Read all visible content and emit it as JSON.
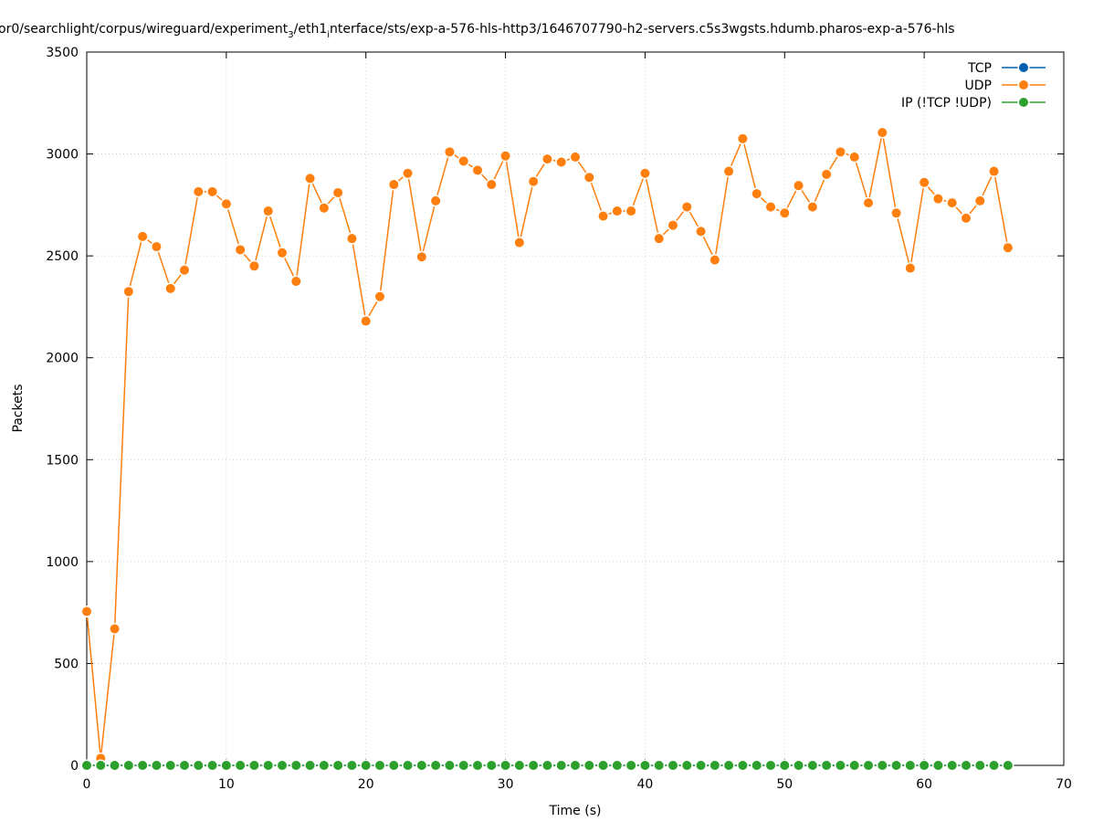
{
  "chart_data": {
    "type": "line",
    "title": "or0/searchlight/corpus/wireguard/experiment",
    "title_sub_1": "3",
    "title_mid": "/eth1",
    "title_sub_2": "i",
    "title_tail": "nterface/sts/exp-a-576-hls-http3/1646707790-h2-servers.c5s3wgsts.hdumb.pharos-exp-a-576-hls",
    "xlabel": "Time (s)",
    "ylabel": "Packets",
    "xlim": [
      0,
      70
    ],
    "ylim": [
      0,
      3500
    ],
    "xticks": [
      0,
      10,
      20,
      30,
      40,
      50,
      60,
      70
    ],
    "yticks": [
      0,
      500,
      1000,
      1500,
      2000,
      2500,
      3000,
      3500
    ],
    "grid": true,
    "legend_position": "top-right",
    "x": [
      0,
      1,
      2,
      3,
      4,
      5,
      6,
      7,
      8,
      9,
      10,
      11,
      12,
      13,
      14,
      15,
      16,
      17,
      18,
      19,
      20,
      21,
      22,
      23,
      24,
      25,
      26,
      27,
      28,
      29,
      30,
      31,
      32,
      33,
      34,
      35,
      36,
      37,
      38,
      39,
      40,
      41,
      42,
      43,
      44,
      45,
      46,
      47,
      48,
      49,
      50,
      51,
      52,
      53,
      54,
      55,
      56,
      57,
      58,
      59,
      60,
      61,
      62,
      63,
      64,
      65,
      66
    ],
    "series": [
      {
        "name": "TCP",
        "color": "#0060ad",
        "values": [
          0,
          0,
          0,
          0,
          0,
          0,
          0,
          0,
          0,
          0,
          0,
          0,
          0,
          0,
          0,
          0,
          0,
          0,
          0,
          0,
          0,
          0,
          0,
          0,
          0,
          0,
          0,
          0,
          0,
          0,
          0,
          0,
          0,
          0,
          0,
          0,
          0,
          0,
          0,
          0,
          0,
          0,
          0,
          0,
          0,
          0,
          0,
          0,
          0,
          0,
          0,
          0,
          0,
          0,
          0,
          0,
          0,
          0,
          0,
          0,
          0,
          0,
          0,
          0,
          0,
          0,
          0
        ]
      },
      {
        "name": "UDP",
        "color": "#ff7f0e",
        "values": [
          755,
          35,
          670,
          2325,
          2595,
          2545,
          2340,
          2430,
          2815,
          2815,
          2755,
          2530,
          2450,
          2720,
          2515,
          2375,
          2880,
          2735,
          2810,
          2585,
          2180,
          2300,
          2850,
          2905,
          2495,
          2770,
          3010,
          2965,
          2920,
          2850,
          2990,
          2565,
          2865,
          2975,
          2960,
          2985,
          2885,
          2695,
          2720,
          2720,
          2905,
          2585,
          2650,
          2740,
          2620,
          2480,
          2915,
          3075,
          2805,
          2740,
          2710,
          2845,
          2740,
          2900,
          3010,
          2985,
          2760,
          3105,
          2710,
          2440,
          2860,
          2780,
          2760,
          2685,
          2770,
          2915,
          2540
        ]
      },
      {
        "name": "IP (!TCP  !UDP)",
        "color": "#2ca02c",
        "values": [
          0,
          0,
          0,
          0,
          0,
          0,
          0,
          0,
          0,
          0,
          0,
          0,
          0,
          0,
          0,
          0,
          0,
          0,
          0,
          0,
          0,
          0,
          0,
          0,
          0,
          0,
          0,
          0,
          0,
          0,
          0,
          0,
          0,
          0,
          0,
          0,
          0,
          0,
          0,
          0,
          0,
          0,
          0,
          0,
          0,
          0,
          0,
          0,
          0,
          0,
          0,
          0,
          0,
          0,
          0,
          0,
          0,
          0,
          0,
          0,
          0,
          0,
          0,
          0,
          0,
          0,
          0
        ]
      }
    ]
  }
}
